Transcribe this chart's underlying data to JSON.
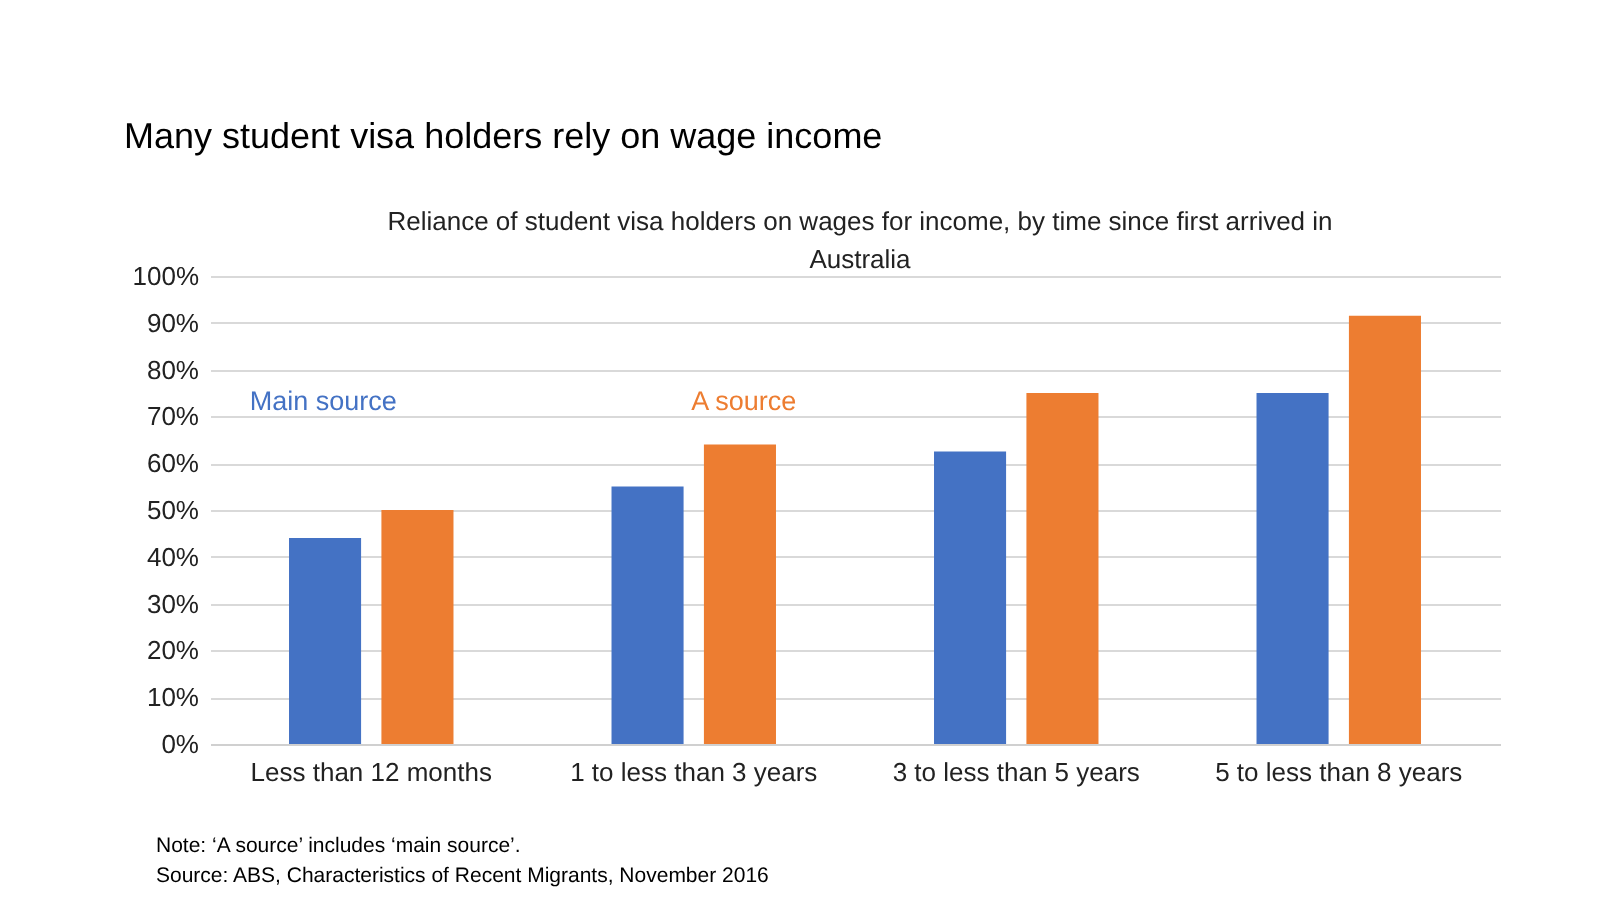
{
  "chart_data": {
    "type": "bar",
    "title": "Many student visa holders rely on wage income",
    "subtitle": "Reliance of student visa holders on wages for income, by time since first arrived in Australia",
    "categories": [
      "Less than 12 months",
      "1 to less than 3 years",
      "3 to less than 5 years",
      "5 to less than 8 years"
    ],
    "series": [
      {
        "name": "Main source",
        "color": "#4472c4",
        "values": [
          44,
          55,
          62.5,
          75
        ]
      },
      {
        "name": "A source",
        "color": "#ed7d31",
        "values": [
          50,
          64,
          75,
          91.5
        ]
      }
    ],
    "ylim": [
      0,
      100
    ],
    "yticks": [
      {
        "value": 0,
        "label": "0%"
      },
      {
        "value": 10,
        "label": "10%"
      },
      {
        "value": 20,
        "label": "20%"
      },
      {
        "value": 30,
        "label": "30%"
      },
      {
        "value": 40,
        "label": "40%"
      },
      {
        "value": 50,
        "label": "50%"
      },
      {
        "value": 60,
        "label": "60%"
      },
      {
        "value": 70,
        "label": "70%"
      },
      {
        "value": 80,
        "label": "80%"
      },
      {
        "value": 90,
        "label": "90%"
      },
      {
        "value": 100,
        "label": "100%"
      }
    ],
    "grid": "y",
    "annotations": [
      "Note: ‘A source’ includes ‘main source’.",
      "Source: ABS, Characteristics of Recent Migrants, November 2016"
    ]
  }
}
